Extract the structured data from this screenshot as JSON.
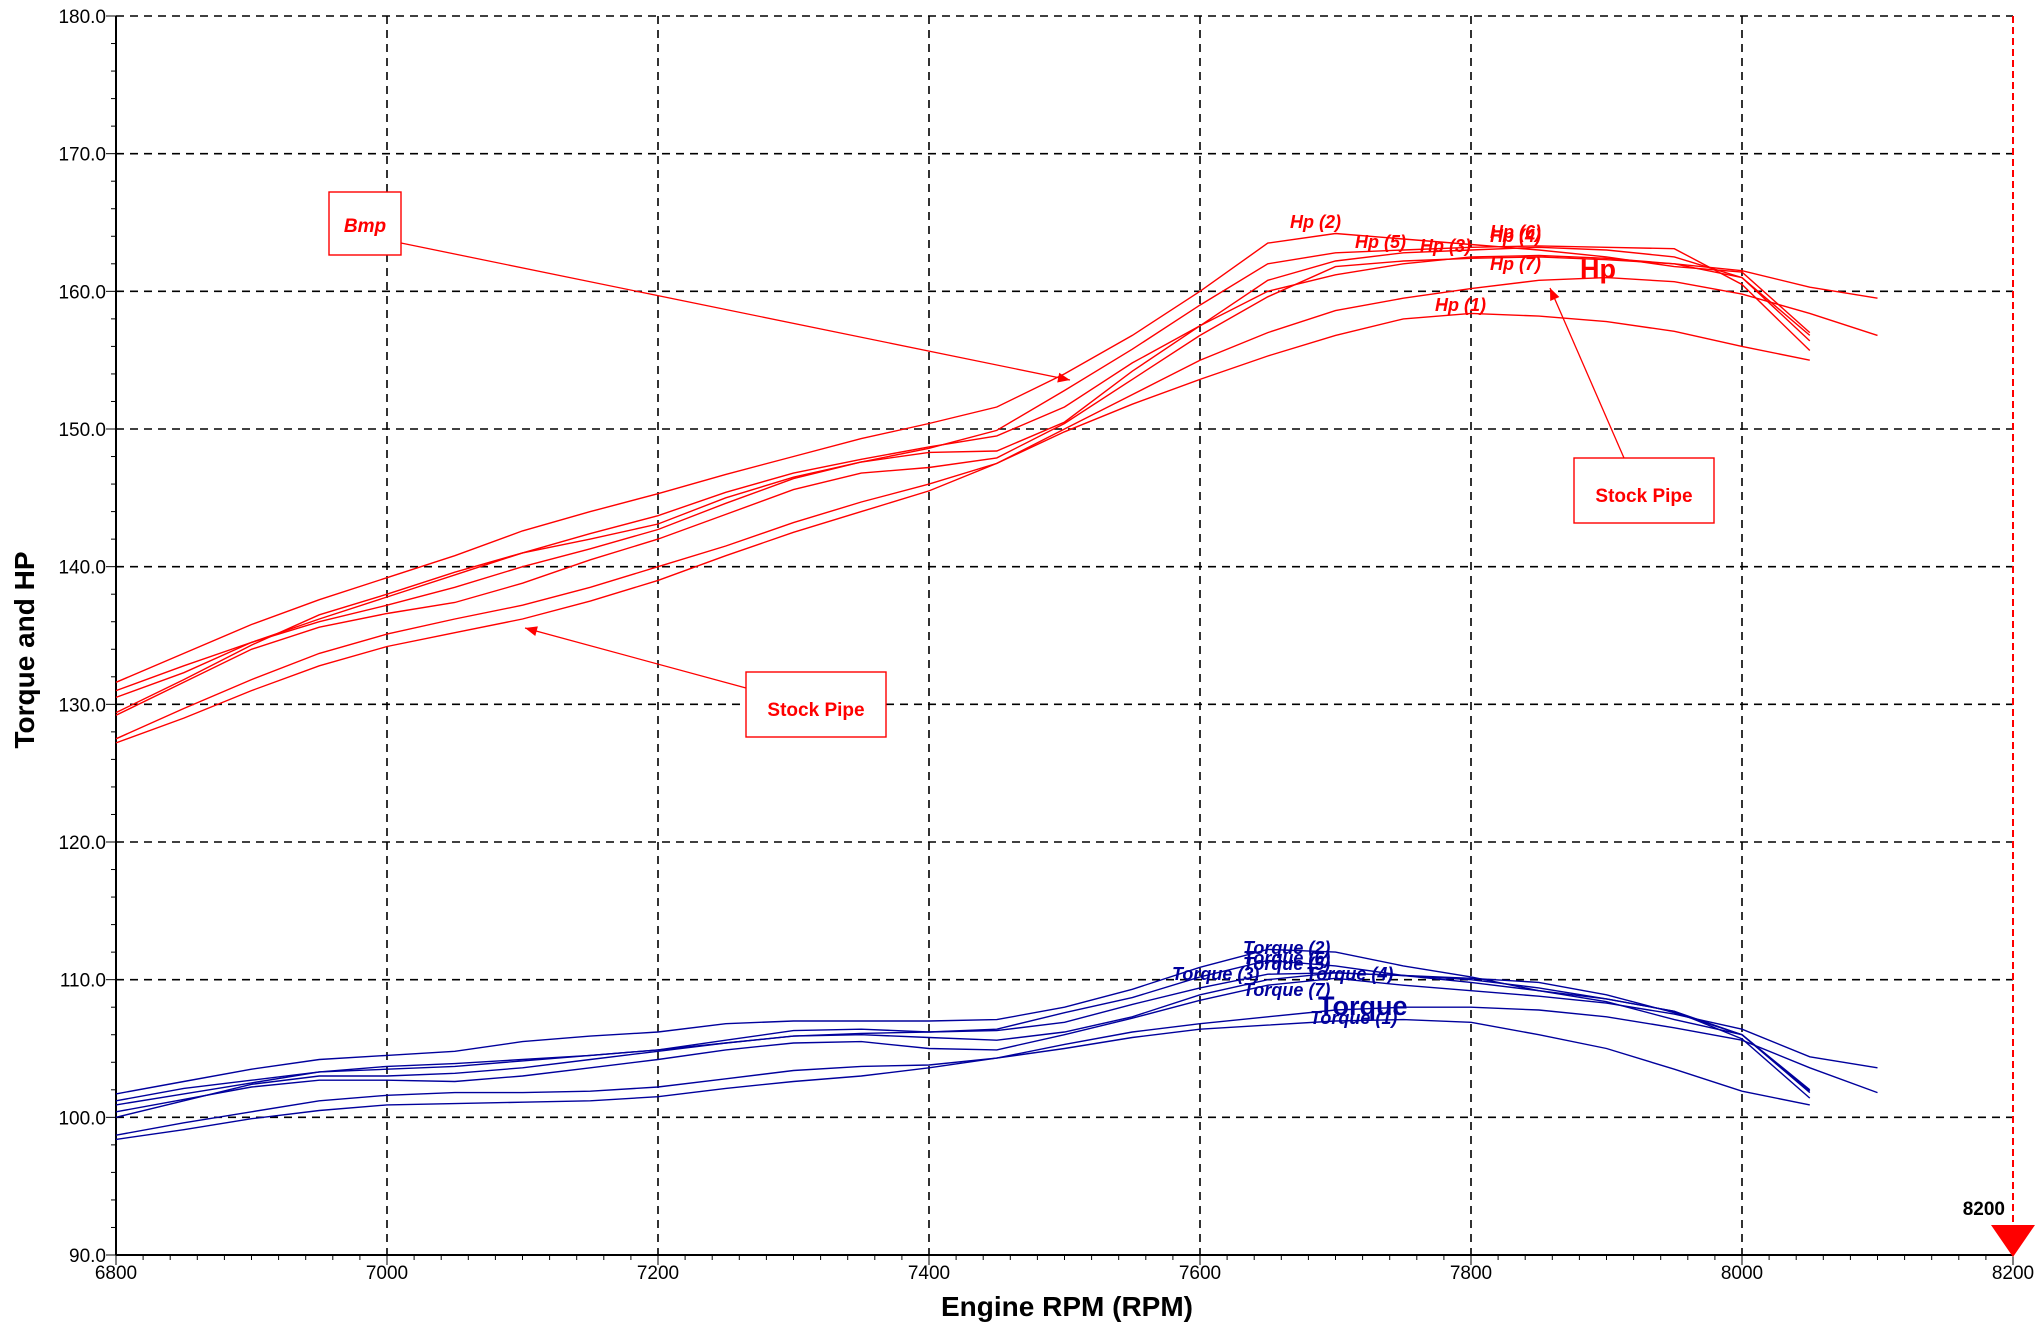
{
  "chart_data": {
    "type": "line",
    "title": "",
    "xlabel": "Engine RPM (RPM)",
    "ylabel": "Torque and HP",
    "xlim": [
      6800,
      8200
    ],
    "ylim": [
      90,
      180
    ],
    "x_ticks": [
      "6800",
      "7000",
      "7200",
      "7400",
      "7600",
      "7800",
      "8000",
      "8200"
    ],
    "y_ticks": [
      "90.0",
      "100.0",
      "110.0",
      "120.0",
      "130.0",
      "140.0",
      "150.0",
      "160.0",
      "170.0",
      "180.0"
    ],
    "grid": true,
    "colors": {
      "hp": "#ff0000",
      "torque": "#00009c",
      "marker": "#ff0000"
    },
    "marker": {
      "rpm": 8200,
      "label": "8200"
    },
    "hp_legend": "Hp",
    "torque_legend": "Torque",
    "hp_series": [
      {
        "name": "Hp (1)",
        "x": [
          6800,
          6850,
          6900,
          6950,
          7000,
          7050,
          7100,
          7150,
          7200,
          7250,
          7300,
          7350,
          7400,
          7450,
          7500,
          7550,
          7600,
          7650,
          7700,
          7750,
          7800,
          7850,
          7900,
          7950,
          8000,
          8050
        ],
        "y": [
          127.2,
          129.0,
          131.0,
          132.8,
          134.2,
          135.2,
          136.2,
          137.5,
          139.0,
          140.8,
          142.5,
          144.0,
          145.5,
          147.5,
          149.8,
          151.8,
          153.6,
          155.3,
          156.8,
          158.0,
          158.4,
          158.2,
          157.8,
          157.1,
          156.0,
          155.0
        ]
      },
      {
        "name": "Hp (2)",
        "x": [
          6800,
          6850,
          6900,
          6950,
          7000,
          7050,
          7100,
          7150,
          7200,
          7250,
          7300,
          7350,
          7400,
          7450,
          7500,
          7550,
          7600,
          7650,
          7700,
          7750,
          7800,
          7850,
          7900,
          7950,
          8000,
          8050
        ],
        "y": [
          131.6,
          133.7,
          135.8,
          137.6,
          139.2,
          140.8,
          142.6,
          144.0,
          145.3,
          146.7,
          148.0,
          149.3,
          150.4,
          151.6,
          154.0,
          156.8,
          160.0,
          163.5,
          164.2,
          163.8,
          163.4,
          163.0,
          162.5,
          161.8,
          161.4,
          157.0
        ]
      },
      {
        "name": "Hp (3)",
        "x": [
          6800,
          6850,
          6900,
          6950,
          7000,
          7050,
          7100,
          7150,
          7200,
          7250,
          7300,
          7350,
          7400,
          7450,
          7500,
          7550,
          7600,
          7650,
          7700,
          7750,
          7800,
          7850,
          7900,
          7950,
          8000,
          8050
        ],
        "y": [
          130.5,
          132.3,
          134.5,
          136.2,
          137.8,
          139.4,
          141.0,
          142.4,
          143.7,
          145.4,
          146.8,
          147.8,
          148.7,
          149.5,
          151.6,
          154.8,
          157.5,
          160.0,
          161.2,
          162.0,
          162.5,
          162.6,
          162.4,
          162.0,
          161.0,
          156.8
        ]
      },
      {
        "name": "Hp (4)",
        "x": [
          6800,
          6850,
          6900,
          6950,
          7000,
          7050,
          7100,
          7150,
          7200,
          7250,
          7300,
          7350,
          7400,
          7450,
          7500,
          7550,
          7600,
          7650,
          7700,
          7750,
          7800,
          7850,
          7900,
          7950,
          8000,
          8050
        ],
        "y": [
          129.4,
          131.8,
          134.3,
          136.5,
          138.0,
          139.6,
          141.0,
          142.0,
          143.1,
          145.0,
          146.5,
          147.6,
          148.3,
          148.4,
          150.5,
          154.2,
          157.5,
          160.8,
          162.2,
          162.8,
          163.0,
          163.2,
          163.0,
          162.5,
          161.0,
          156.4
        ]
      },
      {
        "name": "Hp (5)",
        "x": [
          6800,
          6850,
          6900,
          6950,
          7000,
          7050,
          7100,
          7150,
          7200,
          7250,
          7300,
          7350,
          7400,
          7450,
          7500,
          7550,
          7600,
          7650,
          7700,
          7750,
          7800,
          7850,
          7900,
          7950,
          8000,
          8050
        ],
        "y": [
          131.0,
          132.8,
          134.5,
          136.0,
          137.2,
          138.5,
          140.0,
          141.3,
          142.7,
          144.6,
          146.4,
          147.6,
          148.6,
          149.9,
          152.8,
          155.8,
          159.0,
          162.0,
          162.8,
          163.0,
          163.2,
          163.3,
          163.2,
          163.1,
          160.5,
          155.7
        ]
      },
      {
        "name": "Hp (6)",
        "x": [
          6800,
          6850,
          6900,
          6950,
          7000,
          7050,
          7100,
          7150,
          7200,
          7250,
          7300,
          7350,
          7400,
          7450,
          7500,
          7550,
          7600,
          7650,
          7700,
          7750,
          7800,
          7850,
          7900,
          7950,
          8000,
          8050,
          8100
        ],
        "y": [
          129.2,
          131.6,
          134.0,
          135.6,
          136.6,
          137.4,
          138.8,
          140.5,
          142.0,
          143.8,
          145.6,
          146.8,
          147.2,
          147.9,
          150.4,
          153.6,
          156.8,
          159.6,
          161.8,
          162.2,
          162.4,
          162.5,
          162.3,
          162.0,
          161.5,
          160.3,
          159.5
        ]
      },
      {
        "name": "Hp (7)",
        "x": [
          6800,
          6850,
          6900,
          6950,
          7000,
          7050,
          7100,
          7150,
          7200,
          7250,
          7300,
          7350,
          7400,
          7450,
          7500,
          7550,
          7600,
          7650,
          7700,
          7750,
          7800,
          7850,
          7900,
          7950,
          8000,
          8050,
          8100
        ],
        "y": [
          127.5,
          129.7,
          131.8,
          133.7,
          135.1,
          136.2,
          137.2,
          138.5,
          140.0,
          141.5,
          143.2,
          144.7,
          146.0,
          147.5,
          150.0,
          152.5,
          155.0,
          157.0,
          158.6,
          159.5,
          160.2,
          160.8,
          161.0,
          160.7,
          159.8,
          158.4,
          156.8
        ]
      }
    ],
    "torque_series": [
      {
        "name": "Torque (1)",
        "x": [
          6800,
          6850,
          6900,
          6950,
          7000,
          7050,
          7100,
          7150,
          7200,
          7250,
          7300,
          7350,
          7400,
          7450,
          7500,
          7550,
          7600,
          7650,
          7700,
          7750,
          7800,
          7850,
          7900,
          7950,
          8000,
          8050
        ],
        "y": [
          98.4,
          99.1,
          99.9,
          100.5,
          100.9,
          101.0,
          101.1,
          101.2,
          101.5,
          102.1,
          102.6,
          103.0,
          103.6,
          104.3,
          105.0,
          105.8,
          106.4,
          106.7,
          107.0,
          107.1,
          106.9,
          106.0,
          105.0,
          103.5,
          101.9,
          100.9
        ]
      },
      {
        "name": "Torque (2)",
        "x": [
          6800,
          6850,
          6900,
          6950,
          7000,
          7050,
          7100,
          7150,
          7200,
          7250,
          7300,
          7350,
          7400,
          7450,
          7500,
          7550,
          7600,
          7650,
          7700,
          7750,
          7800,
          7850,
          7900,
          7950,
          8000,
          8050
        ],
        "y": [
          101.7,
          102.6,
          103.5,
          104.2,
          104.5,
          104.8,
          105.5,
          105.9,
          106.2,
          106.8,
          107.0,
          107.0,
          107.0,
          107.1,
          108.0,
          109.3,
          110.9,
          112.2,
          112.0,
          111.0,
          110.2,
          109.2,
          108.4,
          107.1,
          106.0,
          102.0
        ]
      },
      {
        "name": "Torque (3)",
        "x": [
          6800,
          6850,
          6900,
          6950,
          7000,
          7050,
          7100,
          7150,
          7200,
          7250,
          7300,
          7350,
          7400,
          7450,
          7500,
          7550,
          7600,
          7650,
          7700,
          7750,
          7800,
          7850,
          7900,
          7950,
          8000,
          8050
        ],
        "y": [
          100.9,
          101.7,
          102.5,
          103.3,
          103.7,
          103.9,
          104.2,
          104.5,
          104.9,
          105.4,
          105.9,
          106.1,
          106.2,
          106.3,
          106.9,
          108.2,
          109.4,
          110.4,
          110.5,
          110.3,
          110.1,
          109.8,
          108.9,
          107.6,
          106.0,
          101.8
        ]
      },
      {
        "name": "Torque (4)",
        "x": [
          6800,
          6850,
          6900,
          6950,
          7000,
          7050,
          7100,
          7150,
          7200,
          7250,
          7300,
          7350,
          7400,
          7450,
          7500,
          7550,
          7600,
          7650,
          7700,
          7750,
          7800,
          7850,
          7900,
          7950,
          8000,
          8050
        ],
        "y": [
          100.0,
          101.2,
          102.4,
          103.0,
          103.0,
          103.2,
          103.6,
          104.2,
          104.8,
          105.4,
          105.9,
          106.0,
          105.8,
          105.6,
          106.2,
          107.3,
          108.9,
          110.0,
          110.5,
          110.3,
          110.0,
          109.4,
          108.6,
          107.7,
          106.0,
          101.9
        ]
      },
      {
        "name": "Torque (5)",
        "x": [
          6800,
          6850,
          6900,
          6950,
          7000,
          7050,
          7100,
          7150,
          7200,
          7250,
          7300,
          7350,
          7400,
          7450,
          7500,
          7550,
          7600,
          7650,
          7700,
          7750,
          7800,
          7850,
          7900,
          7950,
          8000,
          8050
        ],
        "y": [
          101.2,
          102.1,
          102.7,
          103.3,
          103.5,
          103.7,
          104.1,
          104.5,
          104.9,
          105.6,
          106.3,
          106.4,
          106.2,
          106.4,
          107.6,
          108.7,
          110.2,
          111.4,
          111.0,
          110.3,
          109.8,
          109.2,
          108.6,
          107.7,
          105.7,
          101.4
        ]
      },
      {
        "name": "Torque (6)",
        "x": [
          6800,
          6850,
          6900,
          6950,
          7000,
          7050,
          7100,
          7150,
          7200,
          7250,
          7300,
          7350,
          7400,
          7450,
          7500,
          7550,
          7600,
          7650,
          7700,
          7750,
          7800,
          7850,
          7900,
          7950,
          8000,
          8050,
          8100
        ],
        "y": [
          100.4,
          101.3,
          102.2,
          102.7,
          102.7,
          102.6,
          103.0,
          103.6,
          104.2,
          104.9,
          105.4,
          105.5,
          105.0,
          104.9,
          106.0,
          107.2,
          108.5,
          109.6,
          110.1,
          109.6,
          109.2,
          108.8,
          108.3,
          107.5,
          106.4,
          104.4,
          103.6
        ]
      },
      {
        "name": "Torque (7)",
        "x": [
          6800,
          6850,
          6900,
          6950,
          7000,
          7050,
          7100,
          7150,
          7200,
          7250,
          7300,
          7350,
          7400,
          7450,
          7500,
          7550,
          7600,
          7650,
          7700,
          7750,
          7800,
          7850,
          7900,
          7950,
          8000,
          8050,
          8100
        ],
        "y": [
          98.7,
          99.6,
          100.4,
          101.2,
          101.6,
          101.8,
          101.8,
          101.9,
          102.2,
          102.8,
          103.4,
          103.7,
          103.8,
          104.3,
          105.3,
          106.2,
          106.8,
          107.3,
          107.8,
          108.0,
          108.0,
          107.8,
          107.3,
          106.5,
          105.6,
          103.6,
          101.8
        ]
      }
    ],
    "hp_labels": [
      "Hp (1)",
      "Hp (2)",
      "Hp (3)",
      "Hp (4)",
      "Hp (5)",
      "Hp (6)",
      "Hp (7)"
    ],
    "torque_labels": [
      "Torque (1)",
      "Torque (2)",
      "Torque (3)",
      "Torque (4)",
      "Torque (5)",
      "Torque (6)",
      "Torque (7)"
    ],
    "annotations": [
      {
        "text": "Bmp",
        "italic": true
      },
      {
        "text": "Stock Pipe",
        "italic": false
      },
      {
        "text": "Stock Pipe",
        "italic": false
      }
    ]
  }
}
